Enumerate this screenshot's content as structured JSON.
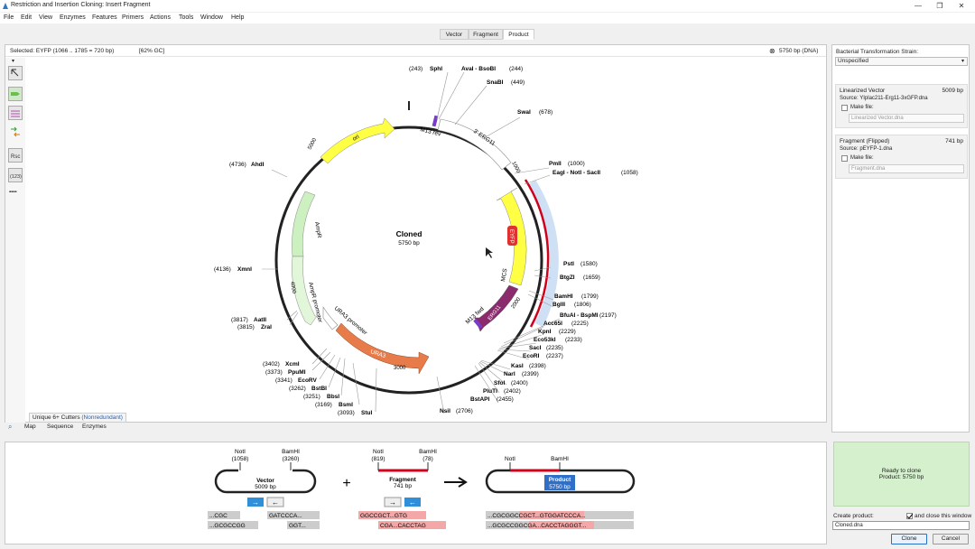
{
  "window": {
    "title": "Restriction and Insertion Cloning: Insert Fragment",
    "controls": {
      "minimize": "—",
      "maximize": "❐",
      "close": "✕"
    }
  },
  "menu": [
    "File",
    "Edit",
    "View",
    "Enzymes",
    "Features",
    "Primers",
    "Actions",
    "Tools",
    "Window",
    "Help"
  ],
  "tabs": [
    "Vector",
    "Fragment",
    "Product"
  ],
  "active_tab": "Product",
  "selection": {
    "text": "Selected:  EYFP  (1066 .. 1785  =  720 bp)",
    "gc": "[62% GC]",
    "size": "5750 bp  (DNA)"
  },
  "map": {
    "name": "Cloned",
    "size": "5750 bp",
    "features": [
      {
        "label": "ori"
      },
      {
        "label": "AmpR"
      },
      {
        "label": "AmpR promoter"
      },
      {
        "label": "URA3 promoter"
      },
      {
        "label": "URA3"
      },
      {
        "label": "3' ERG11"
      },
      {
        "label": "M13 rev"
      },
      {
        "label": "EYFP"
      },
      {
        "label": "MCS"
      },
      {
        "label": "ERG11"
      },
      {
        "label": "M13 fwd"
      }
    ],
    "ticks": [
      "5000",
      "1000",
      "2000",
      "3000",
      "4000"
    ],
    "enzymes_left": [
      {
        "pos": "(243)",
        "name": "SphI"
      },
      {
        "pos": "(4736)",
        "name": "AhdI"
      },
      {
        "pos": "(4136)",
        "name": "XmnI"
      },
      {
        "pos": "(3817)",
        "name": "AatII"
      },
      {
        "pos": "(3815)",
        "name": "ZraI"
      },
      {
        "pos": "(3402)",
        "name": "XcmI"
      },
      {
        "pos": "(3373)",
        "name": "PpuMI"
      },
      {
        "pos": "(3341)",
        "name": "EcoRV"
      },
      {
        "pos": "(3262)",
        "name": "BstBI"
      },
      {
        "pos": "(3251)",
        "name": "BbsI"
      },
      {
        "pos": "(3169)",
        "name": "BsmI"
      },
      {
        "pos": "(3093)",
        "name": "StuI"
      }
    ],
    "enzymes_right": [
      {
        "name": "AvaI - BsoBI",
        "pos": "(244)"
      },
      {
        "name": "SnaBI",
        "pos": "(449)"
      },
      {
        "name": "SwaI",
        "pos": "(678)"
      },
      {
        "name": "PmlI",
        "pos": "(1000)"
      },
      {
        "name": "EagI - NotI - SacII",
        "pos": "(1058)"
      },
      {
        "name": "PstI",
        "pos": "(1580)"
      },
      {
        "name": "BtgZI",
        "pos": "(1659)"
      },
      {
        "name": "BamHI",
        "pos": "(1799)"
      },
      {
        "name": "BglII",
        "pos": "(1806)"
      },
      {
        "name": "BfuAI - BspMI",
        "pos": "(2197)"
      },
      {
        "name": "Acc65I",
        "pos": "(2225)"
      },
      {
        "name": "KpnI",
        "pos": "(2229)"
      },
      {
        "name": "Eco53kI",
        "pos": "(2233)"
      },
      {
        "name": "SacI",
        "pos": "(2235)"
      },
      {
        "name": "EcoRI",
        "pos": "(2237)"
      },
      {
        "name": "KasI",
        "pos": "(2398)"
      },
      {
        "name": "NarI",
        "pos": "(2399)"
      },
      {
        "name": "SfoI",
        "pos": "(2400)"
      },
      {
        "name": "PluTI",
        "pos": "(2402)"
      },
      {
        "name": "BstAPI",
        "pos": "(2455)"
      },
      {
        "name": "NsiI",
        "pos": "(2706)"
      }
    ]
  },
  "cutters": {
    "label": "Unique 6+ Cutters",
    "mode": "(Nonredundant)"
  },
  "view_tabs": [
    "Map",
    "Sequence",
    "Enzymes"
  ],
  "right_panel": {
    "strain_label": "Bacterial Transformation Strain:",
    "strain_value": "Unspecified",
    "vector": {
      "title": "Linearized Vector",
      "bp": "5009 bp",
      "source": "Source:  YIplac211-Erg11-3xGFP.dna",
      "make_file": "Make file:",
      "file_placeholder": "Linearized Vector.dna"
    },
    "fragment": {
      "title": "Fragment  (Flipped)",
      "bp": "741 bp",
      "source": "Source:  pEYFP-1.dna",
      "make_file": "Make file:",
      "file_placeholder": "Fragment.dna"
    }
  },
  "clone_diagram": {
    "vector": {
      "enz1": "NotI",
      "pos1": "(1058)",
      "enz2": "BamHI",
      "pos2": "(3260)",
      "name": "Vector",
      "bp": "5009 bp",
      "seq_top_a": "...CGC",
      "seq_top_b": "GATCCCA...",
      "seq_bot_a": "...GCGCCGG",
      "seq_bot_b": "GGT..."
    },
    "plus": "+",
    "fragment": {
      "enz1": "NotI",
      "pos1": "(819)",
      "enz2": "BamHI",
      "pos2": "(78)",
      "name": "Fragment",
      "bp": "741 bp",
      "seq_top": "GGCCGCT...GTG",
      "seq_bot": "CGA...CACCTAG"
    },
    "product": {
      "enz1": "NotI",
      "enz2": "BamHI",
      "name": "Product",
      "bp": "5750 bp",
      "seq_top": "...CGCGGCCGCT...GTGGATCCCA...",
      "seq_bot": "...GCGCCGGCGA...CACCTAGGGT..."
    }
  },
  "status": {
    "line1": "Ready to clone",
    "line2": "Product:  5750 bp"
  },
  "create": {
    "label": "Create product:",
    "close_label": "and close this window",
    "filename": "Cloned.dna"
  },
  "buttons": {
    "clone": "Clone",
    "cancel": "Cancel"
  }
}
